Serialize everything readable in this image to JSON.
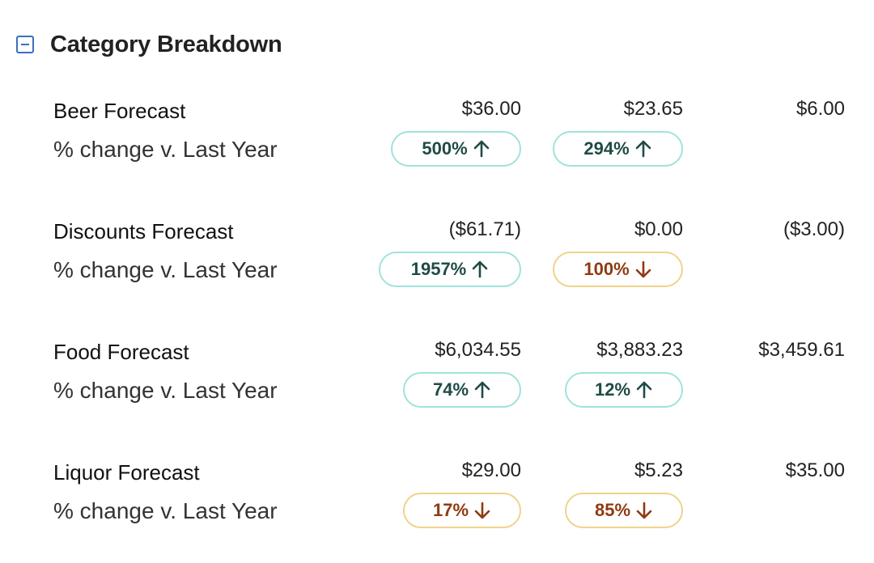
{
  "section": {
    "title": "Category Breakdown",
    "collapse_icon": "minus-square-icon",
    "accent_color": "#3b6fc1"
  },
  "colors": {
    "up_border": "#9fe3da",
    "up_text": "#1f4b46",
    "down_border": "#f1d28a",
    "down_text": "#8f3a12"
  },
  "categories": [
    {
      "label": "Beer Forecast",
      "values": [
        "$36.00",
        "$23.65",
        "$6.00"
      ],
      "change_label": "% change v. Last Year",
      "changes": [
        {
          "text": "500%",
          "direction": "up"
        },
        {
          "text": "294%",
          "direction": "up"
        }
      ]
    },
    {
      "label": "Discounts Forecast",
      "values": [
        "($61.71)",
        "$0.00",
        "($3.00)"
      ],
      "change_label": "% change v. Last Year",
      "changes": [
        {
          "text": "1957%",
          "direction": "up"
        },
        {
          "text": "100%",
          "direction": "down"
        }
      ]
    },
    {
      "label": "Food Forecast",
      "values": [
        "$6,034.55",
        "$3,883.23",
        "$3,459.61"
      ],
      "change_label": "% change v. Last Year",
      "changes": [
        {
          "text": "74%",
          "direction": "up"
        },
        {
          "text": "12%",
          "direction": "up"
        }
      ]
    },
    {
      "label": "Liquor Forecast",
      "values": [
        "$29.00",
        "$5.23",
        "$35.00"
      ],
      "change_label": "% change v. Last Year",
      "changes": [
        {
          "text": "17%",
          "direction": "down"
        },
        {
          "text": "85%",
          "direction": "down"
        }
      ]
    }
  ]
}
